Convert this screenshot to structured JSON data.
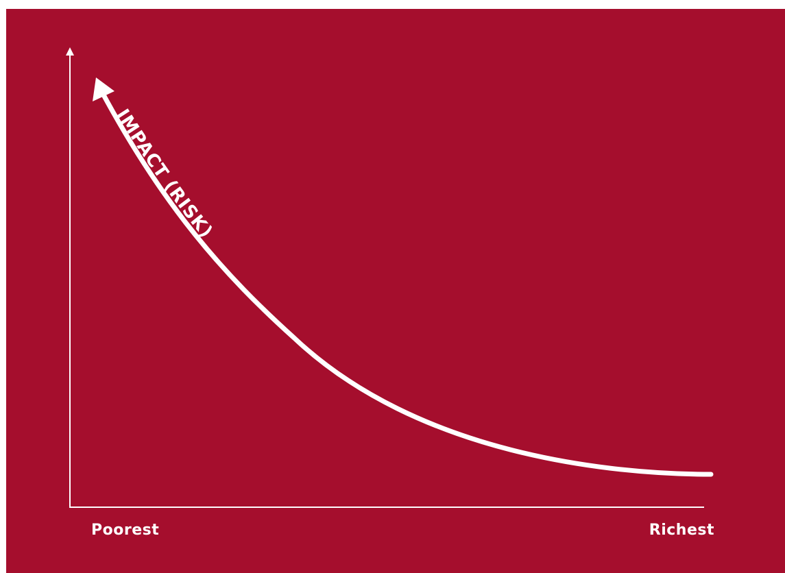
{
  "colors": {
    "background": "#A50E2D",
    "foreground": "#FFFFFF"
  },
  "diagram": {
    "curve_label": "IMPACT (RISK)",
    "x_axis": {
      "left_label": "Poorest",
      "right_label": "Richest"
    },
    "y_axis": {
      "label": ""
    }
  }
}
